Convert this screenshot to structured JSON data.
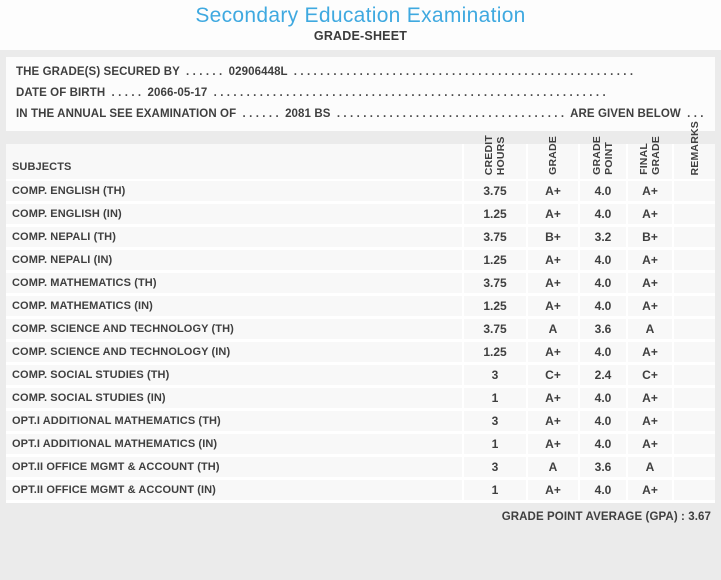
{
  "header": {
    "title": "Secondary Education Examination",
    "subtitle": "GRADE-SHEET"
  },
  "info": {
    "lines": [
      {
        "prefix": "THE GRADE(S) SECURED BY",
        "dots_a": ". . . . . .",
        "value": "02906448L",
        "dots_b": ". . . . . . . . . . . . . . . . . . . . . . . . . . . . . . . . . . . . . . . . . . . . . . . . . . . .",
        "tail": "",
        "dots_c": ""
      },
      {
        "prefix": "DATE OF BIRTH",
        "dots_a": ". . . . .",
        "value": "2066-05-17",
        "dots_b": ". . . . . . . . . . . . . . . . . . . . . . . . . . . . . . . . . . . . . . . . . . . . . . . . . . . . . . . . . . . .",
        "tail": "",
        "dots_c": ""
      },
      {
        "prefix": "IN THE ANNUAL SEE EXAMINATION OF",
        "dots_a": ". . . . . .",
        "value": "2081 BS",
        "dots_b": ". . . . . . . . . . . . . . . . . . . . . . . . . . . . . . . . . . .",
        "tail": "ARE GIVEN BELOW",
        "dots_c": ". . ."
      }
    ]
  },
  "table": {
    "columns": [
      "SUBJECTS",
      "CREDIT\nHOURS",
      "GRADE",
      "GRADE\nPOINT",
      "FINAL\nGRADE",
      "REMARKS"
    ],
    "rows": [
      {
        "subject": "COMP. ENGLISH (TH)",
        "credit_hours": "3.75",
        "grade": "A+",
        "grade_point": "4.0",
        "final_grade": "A+",
        "remarks": ""
      },
      {
        "subject": "COMP. ENGLISH (IN)",
        "credit_hours": "1.25",
        "grade": "A+",
        "grade_point": "4.0",
        "final_grade": "A+",
        "remarks": ""
      },
      {
        "subject": "COMP. NEPALI (TH)",
        "credit_hours": "3.75",
        "grade": "B+",
        "grade_point": "3.2",
        "final_grade": "B+",
        "remarks": ""
      },
      {
        "subject": "COMP. NEPALI (IN)",
        "credit_hours": "1.25",
        "grade": "A+",
        "grade_point": "4.0",
        "final_grade": "A+",
        "remarks": ""
      },
      {
        "subject": "COMP. MATHEMATICS (TH)",
        "credit_hours": "3.75",
        "grade": "A+",
        "grade_point": "4.0",
        "final_grade": "A+",
        "remarks": ""
      },
      {
        "subject": "COMP. MATHEMATICS (IN)",
        "credit_hours": "1.25",
        "grade": "A+",
        "grade_point": "4.0",
        "final_grade": "A+",
        "remarks": ""
      },
      {
        "subject": "COMP. SCIENCE AND TECHNOLOGY (TH)",
        "credit_hours": "3.75",
        "grade": "A",
        "grade_point": "3.6",
        "final_grade": "A",
        "remarks": ""
      },
      {
        "subject": "COMP. SCIENCE AND TECHNOLOGY (IN)",
        "credit_hours": "1.25",
        "grade": "A+",
        "grade_point": "4.0",
        "final_grade": "A+",
        "remarks": ""
      },
      {
        "subject": "COMP. SOCIAL STUDIES (TH)",
        "credit_hours": "3",
        "grade": "C+",
        "grade_point": "2.4",
        "final_grade": "C+",
        "remarks": ""
      },
      {
        "subject": "COMP. SOCIAL STUDIES (IN)",
        "credit_hours": "1",
        "grade": "A+",
        "grade_point": "4.0",
        "final_grade": "A+",
        "remarks": ""
      },
      {
        "subject": "OPT.I ADDITIONAL MATHEMATICS (TH)",
        "credit_hours": "3",
        "grade": "A+",
        "grade_point": "4.0",
        "final_grade": "A+",
        "remarks": ""
      },
      {
        "subject": "OPT.I ADDITIONAL MATHEMATICS (IN)",
        "credit_hours": "1",
        "grade": "A+",
        "grade_point": "4.0",
        "final_grade": "A+",
        "remarks": ""
      },
      {
        "subject": "OPT.II OFFICE MGMT & ACCOUNT (TH)",
        "credit_hours": "3",
        "grade": "A",
        "grade_point": "3.6",
        "final_grade": "A",
        "remarks": ""
      },
      {
        "subject": "OPT.II OFFICE MGMT & ACCOUNT (IN)",
        "credit_hours": "1",
        "grade": "A+",
        "grade_point": "4.0",
        "final_grade": "A+",
        "remarks": ""
      }
    ]
  },
  "footer": {
    "gpa_label": "GRADE POINT AVERAGE (GPA) :",
    "gpa_value": "3.67"
  },
  "colors": {
    "accent_blue": "#3fa9e0",
    "text": "#3f3f3f",
    "page_bg": "#ebebeb",
    "row_bg": "#f8f8f8"
  }
}
